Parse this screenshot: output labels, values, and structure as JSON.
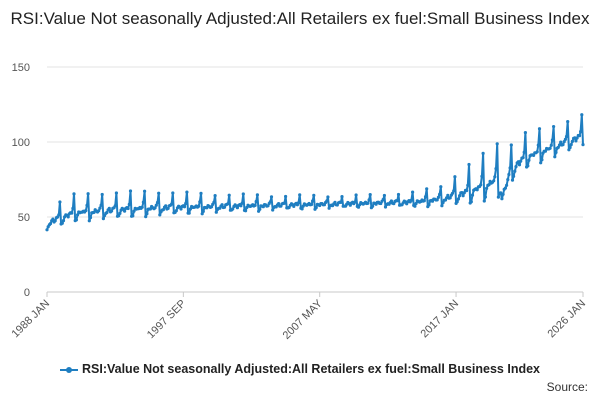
{
  "chart_data": {
    "type": "line",
    "title": "RSI:Value Not seasonally Adjusted:All Retailers ex fuel:Small Business Index",
    "xlabel": "",
    "ylabel": "",
    "x_ticks": [
      "1988 JAN",
      "1997 SEP",
      "2007 MAY",
      "2017 JAN",
      "2026 JAN"
    ],
    "x_range": [
      "1988 JAN",
      "2026 JAN"
    ],
    "y_ticks": [
      0,
      50,
      100,
      150
    ],
    "ylim": [
      0,
      150
    ],
    "grid": true,
    "legend_position": "bottom",
    "color": "#1f7ec1",
    "series": [
      {
        "name": "RSI:Value Not seasonally Adjusted:All Retailers ex fuel:Small Business Index",
        "anchor_x": [
          "1988 JAN",
          "1990 JAN",
          "1995 JAN",
          "2000 JAN",
          "2005 JAN",
          "2010 JAN",
          "2014 JAN",
          "2016 JAN",
          "2018 JAN",
          "2020 JAN",
          "2020 APR",
          "2021 JAN",
          "2022 JAN",
          "2024 JAN",
          "2026 JAN"
        ],
        "anchor_y": [
          46,
          53,
          56,
          57,
          58,
          59,
          60,
          62,
          67,
          75,
          63,
          83,
          90,
          97,
          104
        ],
        "seasonal_peak": [
          10,
          12,
          11,
          8,
          6,
          5,
          6,
          9,
          18,
          25,
          0,
          20,
          16,
          14,
          14
        ]
      }
    ]
  },
  "source_label": "Source:"
}
